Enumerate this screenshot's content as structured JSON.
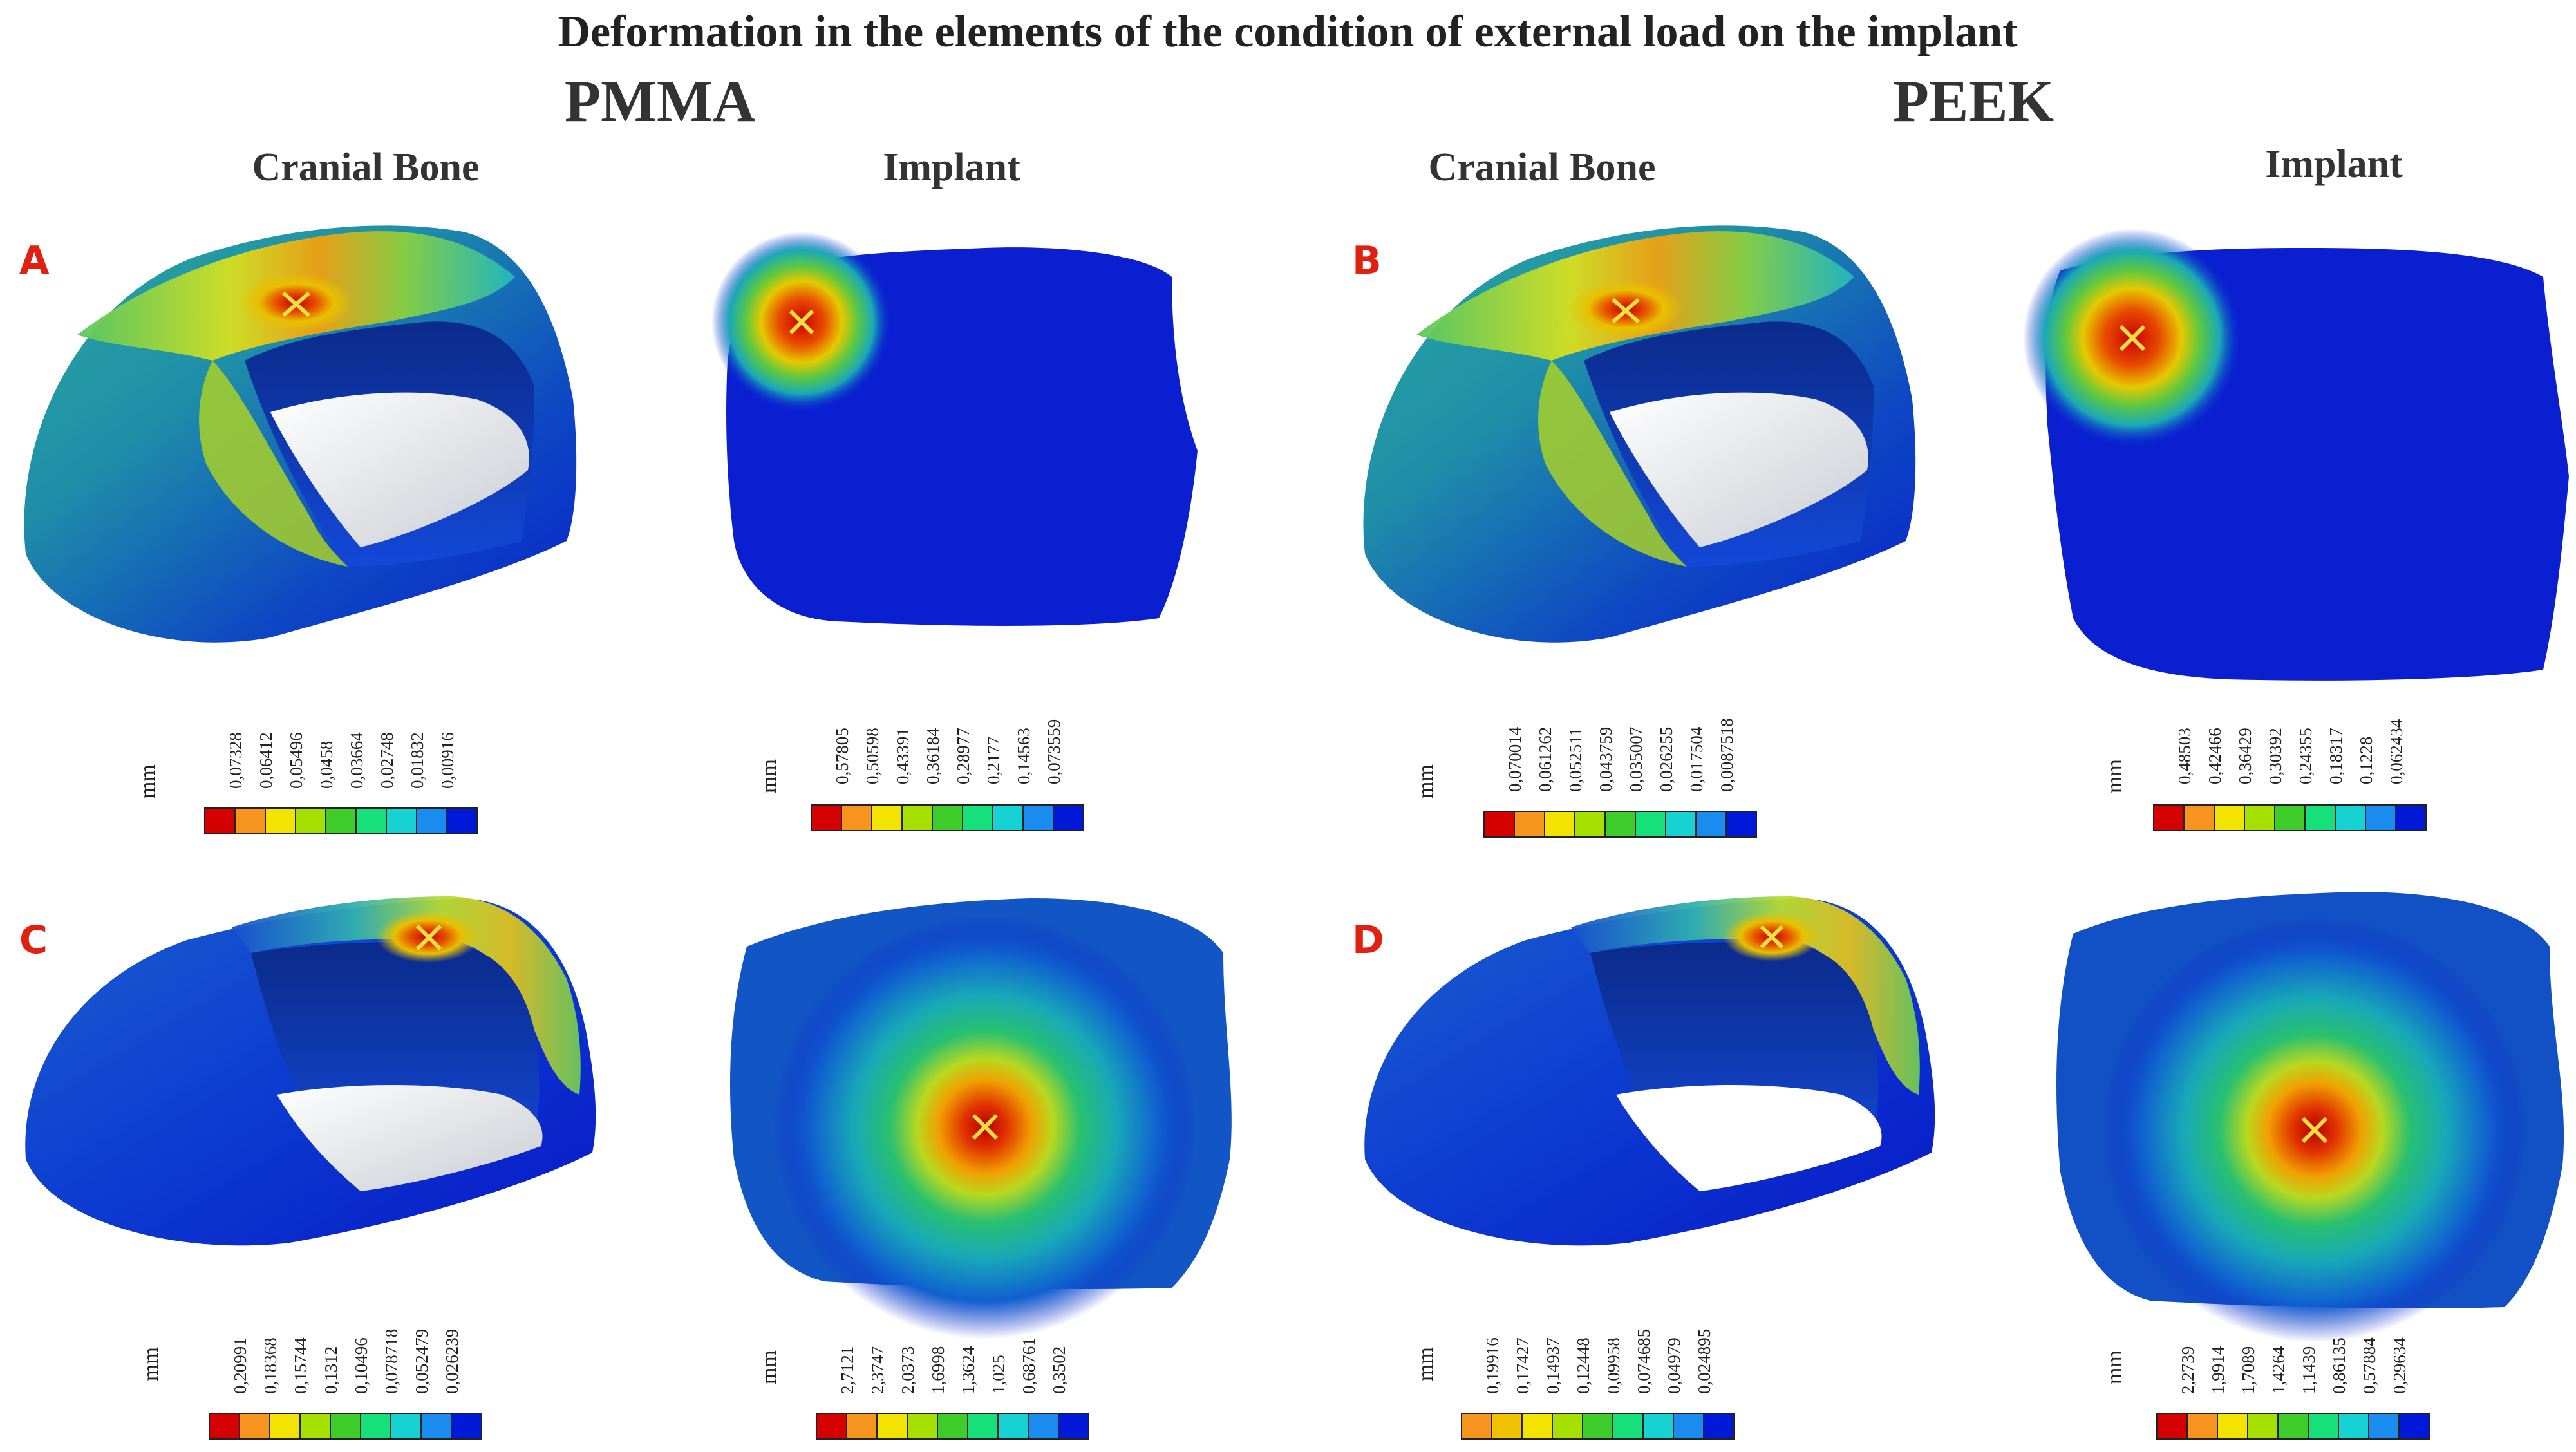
{
  "figure": {
    "title": "Deformation in the elements of the condition of external load on the implant",
    "groups": [
      {
        "label": "PMMA"
      },
      {
        "label": "PEEK"
      }
    ],
    "columns": [
      {
        "label": "Cranial Bone"
      },
      {
        "label": "Implant"
      },
      {
        "label": "Cranial Bone"
      },
      {
        "label": "Implant"
      }
    ],
    "panels": [
      {
        "letter": "A"
      },
      {
        "letter": "B"
      },
      {
        "letter": "C"
      },
      {
        "letter": "D"
      }
    ],
    "colorbar_unit": "mm",
    "colorbars": [
      {
        "values": [
          "0,07328",
          "0,06412",
          "0,05496",
          "0,0458",
          "0,03664",
          "0,02748",
          "0,01832",
          "0,00916"
        ],
        "colors": [
          "#d50000",
          "#f7941d",
          "#f2e400",
          "#a6e000",
          "#3dcc29",
          "#17e07a",
          "#17d2d2",
          "#1a8cf0",
          "#0018d8"
        ]
      },
      {
        "values": [
          "0,57805",
          "0,50598",
          "0,43391",
          "0,36184",
          "0,28977",
          "0,2177",
          "0,14563",
          "0,073559"
        ],
        "colors": [
          "#d50000",
          "#f7941d",
          "#f2e400",
          "#a6e000",
          "#3dcc29",
          "#17e07a",
          "#17d2d2",
          "#1a8cf0",
          "#0018d8"
        ]
      },
      {
        "values": [
          "0,070014",
          "0,061262",
          "0,052511",
          "0,043759",
          "0,035007",
          "0,026255",
          "0,017504",
          "0,0087518"
        ],
        "colors": [
          "#d50000",
          "#f7941d",
          "#f2e400",
          "#a6e000",
          "#3dcc29",
          "#17e07a",
          "#17d2d2",
          "#1a8cf0",
          "#0018d8"
        ]
      },
      {
        "values": [
          "0,48503",
          "0,42466",
          "0,36429",
          "0,30392",
          "0,24355",
          "0,18317",
          "0,1228",
          "0,062434"
        ],
        "colors": [
          "#d50000",
          "#f7941d",
          "#f2e400",
          "#a6e000",
          "#3dcc29",
          "#17e07a",
          "#17d2d2",
          "#1a8cf0",
          "#0018d8"
        ]
      },
      {
        "values": [
          "0,20991",
          "0,18368",
          "0,15744",
          "0,1312",
          "0,10496",
          "0,078718",
          "0,052479",
          "0,026239"
        ],
        "colors": [
          "#d50000",
          "#f7941d",
          "#f2e400",
          "#a6e000",
          "#3dcc29",
          "#17e07a",
          "#17d2d2",
          "#1a8cf0",
          "#0018d8"
        ]
      },
      {
        "values": [
          "2,7121",
          "2,3747",
          "2,0373",
          "1,6998",
          "1,3624",
          "1,025",
          "0,68761",
          "0,3502"
        ],
        "colors": [
          "#d50000",
          "#f7941d",
          "#f2e400",
          "#a6e000",
          "#3dcc29",
          "#17e07a",
          "#17d2d2",
          "#1a8cf0",
          "#0018d8"
        ]
      },
      {
        "values": [
          "0,19916",
          "0,17427",
          "0,14937",
          "0,12448",
          "0,09958",
          "0,074685",
          "0,04979",
          "0,024895"
        ],
        "colors": [
          "#f7941d",
          "#f2c200",
          "#f2e400",
          "#a6e000",
          "#3dcc29",
          "#17e07a",
          "#17d2d2",
          "#1a8cf0",
          "#0018d8"
        ]
      },
      {
        "values": [
          "2,2739",
          "1,9914",
          "1,7089",
          "1,4264",
          "1,1439",
          "0,86135",
          "0,57884",
          "0,29634"
        ],
        "colors": [
          "#d50000",
          "#f7941d",
          "#f2e400",
          "#a6e000",
          "#3dcc29",
          "#17e07a",
          "#17d2d2",
          "#1a8cf0",
          "#0018d8"
        ]
      }
    ]
  }
}
